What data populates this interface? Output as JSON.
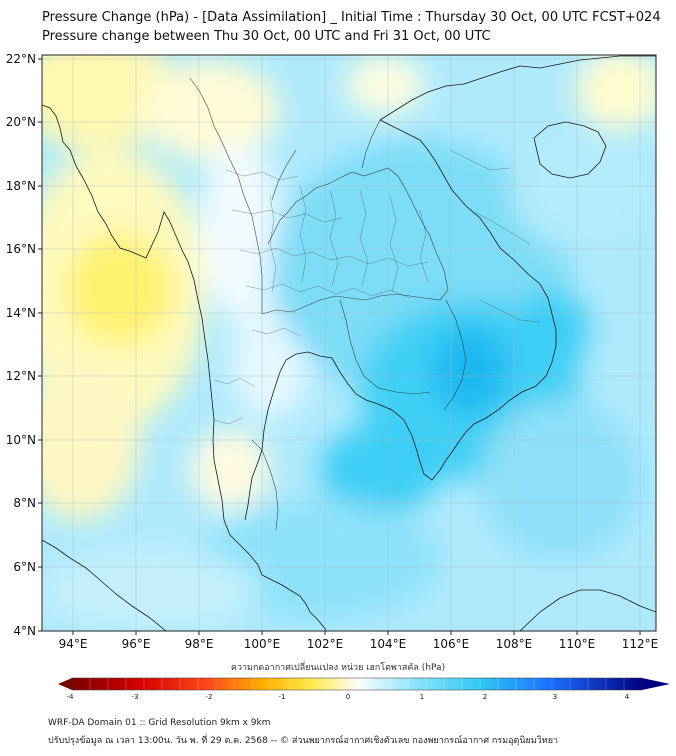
{
  "title_line1": "Pressure Change (hPa) - [Data Assimilation] _ Initial Time : Thursday 30 Oct, 00 UTC FCST+024",
  "title_line2": "Pressure change between Thu 30 Oct, 00 UTC and Fri 31 Oct, 00 UTC",
  "lat_labels": [
    "22°N",
    "20°N",
    "18°N",
    "16°N",
    "14°N",
    "12°N",
    "10°N",
    "8°N",
    "6°N",
    "4°N"
  ],
  "lon_labels": [
    "94°E",
    "96°E",
    "98°E",
    "100°E",
    "102°E",
    "104°E",
    "106°E",
    "108°E",
    "110°E",
    "112°E"
  ],
  "colorbar_title": "ความกดอากาศเปลี่ยนแปลง หน่วย เฮกโตพาสคัล (hPa)",
  "colorbar_ticks": [
    "-4",
    "-3",
    "-2",
    "-1",
    "0",
    "1",
    "2",
    "3",
    "4"
  ],
  "colors": {
    "negative_dark": "#7a0000",
    "negative_mid": "#ff2020",
    "negative_light": "#ffe000",
    "neutral": "#ffffff",
    "positive_light": "#40e0ff",
    "positive_mid": "#1a70ff",
    "positive_dark": "#000080"
  },
  "map": {
    "lon_range": [
      93,
      112.5
    ],
    "lat_range": [
      4,
      22.2
    ],
    "grid": true,
    "field_units": "hPa"
  },
  "footer_line1": "WRF-DA Domain 01 :: Grid Resolution 9km x 9km",
  "footer_line2": "ปรับปรุงข้อมูล ณ เวลา 13:00น. วัน พ. ที่ 29 ต.ค. 2568 -- © ส่วนพยากรณ์อากาศเชิงตัวเลข กองพยากรณ์อากาศ กรมอุตุนิยมวิทยา"
}
